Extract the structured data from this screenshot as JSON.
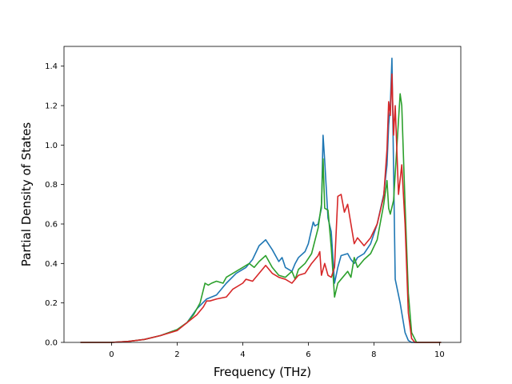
{
  "chart_data": {
    "type": "line",
    "title": "",
    "xlabel": "Frequency (THz)",
    "ylabel": "Partial Density of States",
    "xlim": [
      -1.45,
      10.65
    ],
    "ylim": [
      0.0,
      1.5
    ],
    "xticks": [
      0,
      2,
      4,
      6,
      8,
      10
    ],
    "xtick_labels": [
      "0",
      "2",
      "4",
      "6",
      "8",
      "10"
    ],
    "yticks": [
      0.0,
      0.2,
      0.4,
      0.6,
      0.8,
      1.0,
      1.2,
      1.4
    ],
    "ytick_labels": [
      "0.0",
      "0.2",
      "0.4",
      "0.6",
      "0.8",
      "1.0",
      "1.2",
      "1.4"
    ],
    "grid": false,
    "legend": "none",
    "series": [
      {
        "color": "#1f77b4",
        "x": [
          -0.95,
          0.0,
          0.5,
          1.0,
          1.5,
          2.0,
          2.3,
          2.6,
          2.9,
          3.2,
          3.5,
          3.8,
          4.1,
          4.3,
          4.5,
          4.7,
          4.9,
          5.1,
          5.2,
          5.3,
          5.5,
          5.6,
          5.7,
          5.9,
          6.0,
          6.15,
          6.2,
          6.3,
          6.4,
          6.45,
          6.5,
          6.6,
          6.7,
          6.8,
          6.9,
          7.0,
          7.2,
          7.3,
          7.4,
          7.5,
          7.7,
          7.9,
          8.1,
          8.3,
          8.4,
          8.45,
          8.5,
          8.55,
          8.65,
          8.8,
          8.95,
          9.05,
          9.15,
          9.3,
          10.05
        ],
        "y": [
          0.0,
          0.0,
          0.005,
          0.015,
          0.035,
          0.065,
          0.1,
          0.17,
          0.22,
          0.24,
          0.3,
          0.35,
          0.38,
          0.42,
          0.49,
          0.52,
          0.47,
          0.41,
          0.43,
          0.38,
          0.36,
          0.4,
          0.43,
          0.46,
          0.5,
          0.61,
          0.59,
          0.6,
          0.68,
          1.05,
          0.92,
          0.63,
          0.56,
          0.3,
          0.38,
          0.44,
          0.45,
          0.42,
          0.4,
          0.43,
          0.45,
          0.5,
          0.6,
          0.75,
          0.9,
          1.1,
          1.2,
          1.44,
          0.32,
          0.2,
          0.05,
          0.01,
          0.0,
          0.0,
          0.0
        ]
      },
      {
        "color": "#2ca02c",
        "x": [
          -0.95,
          0.0,
          0.5,
          1.0,
          1.5,
          2.0,
          2.3,
          2.5,
          2.7,
          2.85,
          2.95,
          3.05,
          3.2,
          3.4,
          3.5,
          3.8,
          4.0,
          4.2,
          4.35,
          4.5,
          4.7,
          4.9,
          5.1,
          5.3,
          5.5,
          5.6,
          5.7,
          5.9,
          6.1,
          6.3,
          6.4,
          6.45,
          6.5,
          6.6,
          6.7,
          6.8,
          6.9,
          7.0,
          7.2,
          7.3,
          7.4,
          7.5,
          7.7,
          7.9,
          8.1,
          8.3,
          8.4,
          8.45,
          8.5,
          8.6,
          8.8,
          8.85,
          8.95,
          9.05,
          9.15,
          9.3,
          10.05
        ],
        "y": [
          0.0,
          0.0,
          0.005,
          0.015,
          0.035,
          0.065,
          0.1,
          0.14,
          0.2,
          0.3,
          0.29,
          0.3,
          0.31,
          0.3,
          0.33,
          0.36,
          0.38,
          0.4,
          0.38,
          0.41,
          0.44,
          0.38,
          0.34,
          0.33,
          0.36,
          0.32,
          0.37,
          0.4,
          0.45,
          0.58,
          0.7,
          0.93,
          0.68,
          0.67,
          0.48,
          0.23,
          0.3,
          0.32,
          0.36,
          0.33,
          0.43,
          0.38,
          0.42,
          0.45,
          0.52,
          0.7,
          0.82,
          0.68,
          0.65,
          0.72,
          1.26,
          1.2,
          0.7,
          0.25,
          0.05,
          0.0,
          0.0
        ]
      },
      {
        "color": "#d62728",
        "x": [
          -0.95,
          0.0,
          0.5,
          1.0,
          1.5,
          2.0,
          2.3,
          2.6,
          2.8,
          2.9,
          3.0,
          3.2,
          3.5,
          3.7,
          4.0,
          4.1,
          4.3,
          4.5,
          4.7,
          4.9,
          5.1,
          5.3,
          5.5,
          5.7,
          5.9,
          6.1,
          6.3,
          6.35,
          6.4,
          6.5,
          6.6,
          6.7,
          6.8,
          6.9,
          7.0,
          7.1,
          7.2,
          7.3,
          7.4,
          7.5,
          7.7,
          7.9,
          8.1,
          8.3,
          8.4,
          8.45,
          8.5,
          8.55,
          8.6,
          8.65,
          8.75,
          8.85,
          8.95,
          9.05,
          9.15,
          9.25,
          10.05
        ],
        "y": [
          0.0,
          0.0,
          0.005,
          0.015,
          0.035,
          0.06,
          0.1,
          0.14,
          0.18,
          0.21,
          0.21,
          0.22,
          0.23,
          0.27,
          0.3,
          0.32,
          0.31,
          0.35,
          0.39,
          0.35,
          0.33,
          0.32,
          0.3,
          0.34,
          0.35,
          0.4,
          0.44,
          0.46,
          0.34,
          0.4,
          0.34,
          0.33,
          0.38,
          0.74,
          0.75,
          0.66,
          0.7,
          0.6,
          0.5,
          0.53,
          0.49,
          0.53,
          0.6,
          0.74,
          0.98,
          1.22,
          1.15,
          1.36,
          1.05,
          1.2,
          0.75,
          0.9,
          0.6,
          0.15,
          0.02,
          0.0,
          0.0
        ]
      }
    ]
  }
}
